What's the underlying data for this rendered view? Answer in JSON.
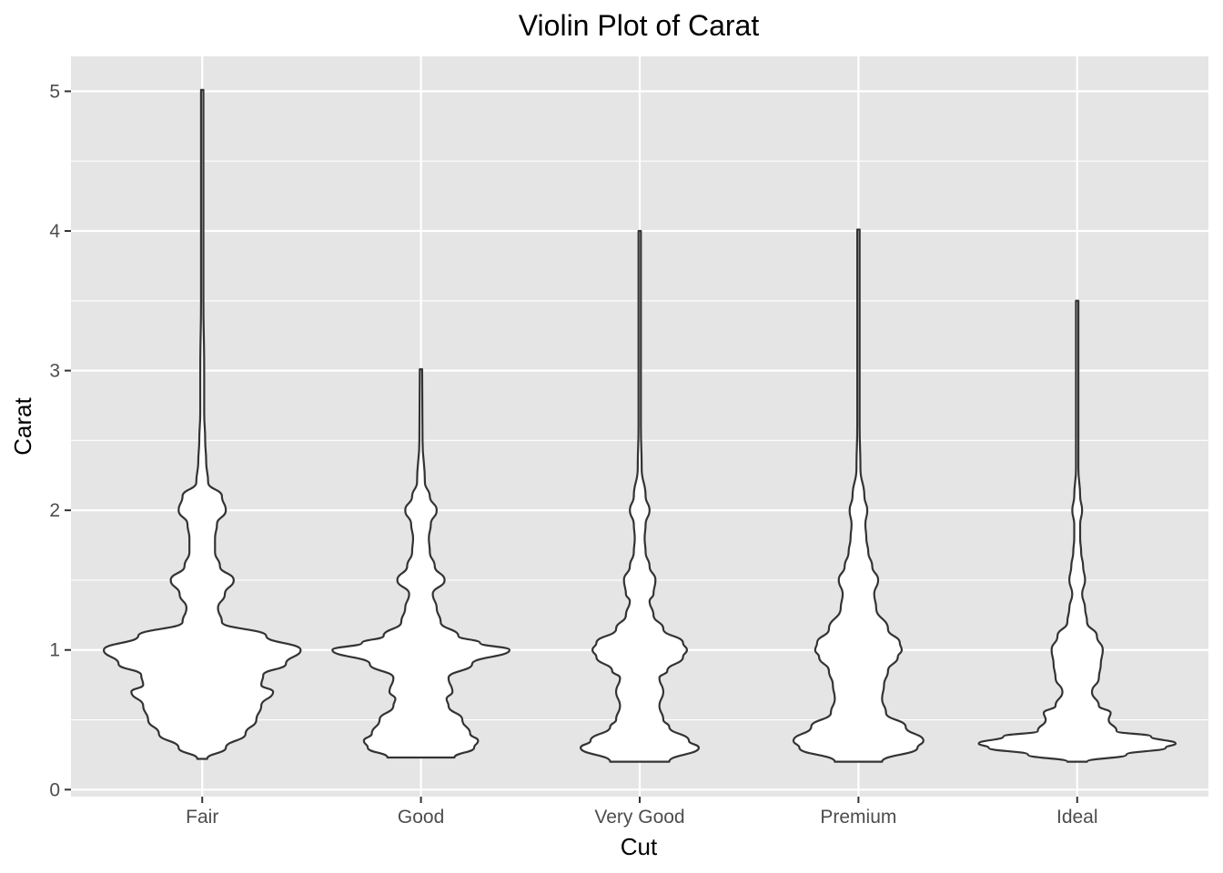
{
  "chart_data": {
    "type": "violin",
    "title": "Violin Plot of Carat",
    "xlabel": "Cut",
    "ylabel": "Carat",
    "categories": [
      "Fair",
      "Good",
      "Very Good",
      "Premium",
      "Ideal"
    ],
    "yticks": [
      "0",
      "1",
      "2",
      "3",
      "4",
      "5"
    ],
    "ylim": [
      -0.05,
      5.25
    ],
    "grid": true,
    "violins": [
      {
        "category": "Fair",
        "min": 0.22,
        "max": 5.01,
        "profile": [
          [
            0.22,
            0.05
          ],
          [
            0.3,
            0.24
          ],
          [
            0.4,
            0.44
          ],
          [
            0.5,
            0.55
          ],
          [
            0.6,
            0.6
          ],
          [
            0.7,
            0.72
          ],
          [
            0.75,
            0.6
          ],
          [
            0.82,
            0.62
          ],
          [
            0.9,
            0.85
          ],
          [
            1.0,
            1.0
          ],
          [
            1.1,
            0.65
          ],
          [
            1.2,
            0.2
          ],
          [
            1.3,
            0.16
          ],
          [
            1.4,
            0.23
          ],
          [
            1.5,
            0.32
          ],
          [
            1.6,
            0.18
          ],
          [
            1.7,
            0.13
          ],
          [
            1.8,
            0.13
          ],
          [
            1.9,
            0.15
          ],
          [
            2.0,
            0.24
          ],
          [
            2.1,
            0.2
          ],
          [
            2.2,
            0.06
          ],
          [
            2.35,
            0.04
          ],
          [
            2.5,
            0.03
          ],
          [
            2.7,
            0.02
          ],
          [
            3.0,
            0.02
          ],
          [
            3.5,
            0.012
          ],
          [
            5.01,
            0.012
          ]
        ]
      },
      {
        "category": "Good",
        "min": 0.23,
        "max": 3.01,
        "profile": [
          [
            0.23,
            0.34
          ],
          [
            0.3,
            0.54
          ],
          [
            0.35,
            0.58
          ],
          [
            0.4,
            0.5
          ],
          [
            0.5,
            0.42
          ],
          [
            0.6,
            0.28
          ],
          [
            0.65,
            0.26
          ],
          [
            0.7,
            0.32
          ],
          [
            0.8,
            0.28
          ],
          [
            0.9,
            0.52
          ],
          [
            1.0,
            0.9
          ],
          [
            1.05,
            0.6
          ],
          [
            1.1,
            0.38
          ],
          [
            1.2,
            0.2
          ],
          [
            1.3,
            0.16
          ],
          [
            1.4,
            0.12
          ],
          [
            1.5,
            0.24
          ],
          [
            1.6,
            0.14
          ],
          [
            1.7,
            0.09
          ],
          [
            1.8,
            0.08
          ],
          [
            1.9,
            0.1
          ],
          [
            2.0,
            0.16
          ],
          [
            2.1,
            0.09
          ],
          [
            2.2,
            0.04
          ],
          [
            2.5,
            0.016
          ],
          [
            3.01,
            0.012
          ]
        ]
      },
      {
        "category": "Very Good",
        "min": 0.2,
        "max": 4.0,
        "profile": [
          [
            0.2,
            0.3
          ],
          [
            0.3,
            0.6
          ],
          [
            0.35,
            0.5
          ],
          [
            0.45,
            0.3
          ],
          [
            0.5,
            0.24
          ],
          [
            0.6,
            0.2
          ],
          [
            0.7,
            0.24
          ],
          [
            0.8,
            0.2
          ],
          [
            0.85,
            0.28
          ],
          [
            0.95,
            0.44
          ],
          [
            1.0,
            0.48
          ],
          [
            1.05,
            0.44
          ],
          [
            1.15,
            0.24
          ],
          [
            1.25,
            0.14
          ],
          [
            1.35,
            0.1
          ],
          [
            1.4,
            0.14
          ],
          [
            1.5,
            0.16
          ],
          [
            1.6,
            0.1
          ],
          [
            1.7,
            0.06
          ],
          [
            1.8,
            0.05
          ],
          [
            1.9,
            0.06
          ],
          [
            2.0,
            0.1
          ],
          [
            2.1,
            0.06
          ],
          [
            2.3,
            0.02
          ],
          [
            2.6,
            0.012
          ],
          [
            4.0,
            0.012
          ]
        ]
      },
      {
        "category": "Premium",
        "min": 0.2,
        "max": 4.01,
        "profile": [
          [
            0.2,
            0.24
          ],
          [
            0.3,
            0.6
          ],
          [
            0.35,
            0.66
          ],
          [
            0.45,
            0.48
          ],
          [
            0.55,
            0.28
          ],
          [
            0.65,
            0.24
          ],
          [
            0.75,
            0.26
          ],
          [
            0.85,
            0.3
          ],
          [
            0.95,
            0.4
          ],
          [
            1.0,
            0.44
          ],
          [
            1.05,
            0.42
          ],
          [
            1.15,
            0.3
          ],
          [
            1.3,
            0.18
          ],
          [
            1.4,
            0.16
          ],
          [
            1.5,
            0.2
          ],
          [
            1.6,
            0.14
          ],
          [
            1.7,
            0.1
          ],
          [
            1.8,
            0.08
          ],
          [
            1.9,
            0.07
          ],
          [
            2.0,
            0.09
          ],
          [
            2.1,
            0.06
          ],
          [
            2.3,
            0.02
          ],
          [
            2.6,
            0.012
          ],
          [
            4.01,
            0.012
          ]
        ]
      },
      {
        "category": "Ideal",
        "min": 0.2,
        "max": 3.5,
        "profile": [
          [
            0.2,
            0.1
          ],
          [
            0.25,
            0.5
          ],
          [
            0.3,
            0.9
          ],
          [
            0.33,
            1.0
          ],
          [
            0.38,
            0.75
          ],
          [
            0.42,
            0.4
          ],
          [
            0.5,
            0.32
          ],
          [
            0.55,
            0.34
          ],
          [
            0.6,
            0.22
          ],
          [
            0.7,
            0.15
          ],
          [
            0.8,
            0.22
          ],
          [
            0.9,
            0.24
          ],
          [
            1.0,
            0.26
          ],
          [
            1.1,
            0.2
          ],
          [
            1.2,
            0.1
          ],
          [
            1.3,
            0.08
          ],
          [
            1.4,
            0.05
          ],
          [
            1.5,
            0.08
          ],
          [
            1.6,
            0.06
          ],
          [
            1.7,
            0.04
          ],
          [
            1.8,
            0.03
          ],
          [
            1.9,
            0.03
          ],
          [
            2.0,
            0.05
          ],
          [
            2.1,
            0.03
          ],
          [
            2.3,
            0.012
          ],
          [
            3.5,
            0.012
          ]
        ]
      }
    ]
  },
  "colors": {
    "panel_background": "#e5e5e5",
    "grid_line": "#ffffff",
    "violin_fill": "#ffffff",
    "violin_outline": "#333333",
    "tick_mark": "#333333",
    "tick_label": "#4d4d4d"
  }
}
